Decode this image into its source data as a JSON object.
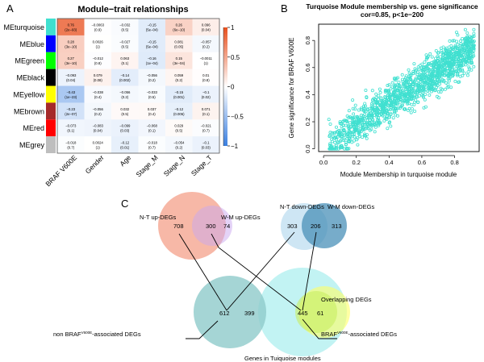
{
  "panels": {
    "A": {
      "letter": "A",
      "title": "Module−trait relationships",
      "rows": [
        "MEturquoise",
        "MEblue",
        "MEgreen",
        "MEblack",
        "MEyellow",
        "MEbrown",
        "MEred",
        "MEgrey"
      ],
      "row_colors": [
        "#40E0D0",
        "#0000FF",
        "#00FF00",
        "#000000",
        "#FFFF00",
        "#A52A2A",
        "#FF0000",
        "#BEBEBE"
      ],
      "columns": [
        "BRAF V600E",
        "Gender",
        "Age",
        "Stage_M",
        "Stage_N",
        "Stage_T"
      ],
      "cells": [
        [
          {
            "r": 0.76,
            "p": "(2e−93)"
          },
          {
            "r": -0.0063,
            "p": "(0.9)"
          },
          {
            "r": -0.032,
            "p": "(0.5)"
          },
          {
            "r": -0.15,
            "p": "(5e−04)"
          },
          {
            "r": 0.26,
            "p": "(6e−10)"
          },
          {
            "r": 0.096,
            "p": "(0.04)"
          }
        ],
        [
          {
            "r": 0.28,
            "p": "(3e−10)"
          },
          {
            "r": 0.0026,
            "p": "(1)"
          },
          {
            "r": -0.027,
            "p": "(0.5)"
          },
          {
            "r": -0.15,
            "p": "(5e−04)"
          },
          {
            "r": 0.081,
            "p": "(0.05)"
          },
          {
            "r": -0.057,
            "p": "(0.2)"
          }
        ],
        [
          {
            "r": 0.27,
            "p": "(3e−10)"
          },
          {
            "r": -0.012,
            "p": "(0.8)"
          },
          {
            "r": 0.063,
            "p": "(0.1)"
          },
          {
            "r": -0.16,
            "p": "(1e−04)"
          },
          {
            "r": 0.15,
            "p": "(3e−04)"
          },
          {
            "r": -0.0011,
            "p": "(1)"
          }
        ],
        [
          {
            "r": -0.093,
            "p": "(0.04)"
          },
          {
            "r": 0.079,
            "p": "(0.08)"
          },
          {
            "r": -0.14,
            "p": "(0.002)"
          },
          {
            "r": -0.056,
            "p": "(0.2)"
          },
          {
            "r": 0.059,
            "p": "(0.2)"
          },
          {
            "r": 0.01,
            "p": "(0.8)"
          }
        ],
        [
          {
            "r": -0.43,
            "p": "(1e−23)"
          },
          {
            "r": -0.038,
            "p": "(0.4)"
          },
          {
            "r": -0.056,
            "p": "(0.2)"
          },
          {
            "r": -0.033,
            "p": "(0.5)"
          },
          {
            "r": -0.15,
            "p": "(0.001)"
          },
          {
            "r": -0.1,
            "p": "(0.02)"
          }
        ],
        [
          {
            "r": -0.23,
            "p": "(2e−07)"
          },
          {
            "r": -0.056,
            "p": "(0.2)"
          },
          {
            "r": 0.032,
            "p": "(0.5)"
          },
          {
            "r": 0.037,
            "p": "(0.4)"
          },
          {
            "r": -0.12,
            "p": "(0.006)"
          },
          {
            "r": 0.071,
            "p": "(0.1)"
          }
        ],
        [
          {
            "r": -0.073,
            "p": "(0.1)"
          },
          {
            "r": -0.083,
            "p": "(0.04)"
          },
          {
            "r": -0.099,
            "p": "(0.03)"
          },
          {
            "r": -0.068,
            "p": "(0.1)"
          },
          {
            "r": 0.029,
            "p": "(0.5)"
          },
          {
            "r": -0.021,
            "p": "(0.7)"
          }
        ],
        [
          {
            "r": -0.018,
            "p": "(0.7)"
          },
          {
            "r": 0.0024,
            "p": "(1)"
          },
          {
            "r": -0.12,
            "p": "(0.01)"
          },
          {
            "r": -0.018,
            "p": "(0.7)"
          },
          {
            "r": -0.054,
            "p": "(0.2)"
          },
          {
            "r": -0.1,
            "p": "(0.03)"
          }
        ]
      ],
      "colorbar": {
        "ticks": [
          "1",
          "0.5",
          "0",
          "−0.5",
          "−1"
        ],
        "range": [
          -1,
          1
        ],
        "high_color": "#E8501E",
        "mid_color": "#FFFFFF",
        "low_color": "#3A7FE0"
      }
    },
    "B": {
      "letter": "B",
      "title_line1": "Turquoise Module membership vs. gene significance",
      "title_line2": "cor=0.85, p<1e−200",
      "xlabel": "Module Membership in turquoise module",
      "ylabel": "Gene significance for BRAF V600E",
      "x_ticks": [
        "0.0",
        "0.2",
        "0.4",
        "0.6",
        "0.8"
      ],
      "y_ticks": [
        "0.0",
        "0.2",
        "0.4",
        "0.6",
        "0.8"
      ],
      "point_color": "#40E0D0"
    },
    "C": {
      "letter": "C",
      "up": {
        "left_label": "N-T  up-DEGs",
        "right_label": "W-M  up-DEGs",
        "left_only": "708",
        "overlap": "300",
        "right_only": "74"
      },
      "down": {
        "left_label": "N-T  down-DEGs",
        "right_label": "W-M  down-DEGs",
        "left_only": "303",
        "overlap": "206",
        "right_only": "313"
      },
      "bottom": {
        "left_only": "612",
        "overlap_left": "399",
        "overlap_right": "445",
        "right_only": "61",
        "non_braf_label_pre": "non BRAF",
        "non_braf_sup": "V600E",
        "non_braf_label_post": "-associated DEGs",
        "braf_label_pre": "BRAF",
        "braf_sup": "V600E",
        "braf_label_post": "-associated DEGs",
        "overlapping_label": "Overlapping DEGs",
        "turquoise_label": "Genes in Tuiquoise modules"
      }
    }
  },
  "chart_data": [
    {
      "type": "heatmap",
      "title": "Module−trait relationships",
      "rows": [
        "MEturquoise",
        "MEblue",
        "MEgreen",
        "MEblack",
        "MEyellow",
        "MEbrown",
        "MEred",
        "MEgrey"
      ],
      "columns": [
        "BRAF V600E",
        "Gender",
        "Age",
        "Stage_M",
        "Stage_N",
        "Stage_T"
      ],
      "values": [
        [
          0.76,
          -0.0063,
          -0.032,
          -0.15,
          0.26,
          0.096
        ],
        [
          0.28,
          0.0026,
          -0.027,
          -0.15,
          0.081,
          -0.057
        ],
        [
          0.27,
          -0.012,
          0.063,
          -0.16,
          0.15,
          -0.0011
        ],
        [
          -0.093,
          0.079,
          -0.14,
          -0.056,
          0.059,
          0.01
        ],
        [
          -0.43,
          -0.038,
          -0.056,
          -0.033,
          -0.15,
          -0.1
        ],
        [
          -0.23,
          -0.056,
          0.032,
          0.037,
          -0.12,
          0.071
        ],
        [
          -0.073,
          -0.083,
          -0.099,
          -0.068,
          0.029,
          -0.021
        ],
        [
          -0.018,
          0.0024,
          -0.12,
          -0.018,
          -0.054,
          -0.1
        ]
      ],
      "pvalues": [
        [
          "2e-93",
          "0.9",
          "0.5",
          "5e-04",
          "6e-10",
          "0.04"
        ],
        [
          "3e-10",
          "1",
          "0.5",
          "5e-04",
          "0.05",
          "0.2"
        ],
        [
          "3e-10",
          "0.8",
          "0.1",
          "1e-04",
          "3e-04",
          "1"
        ],
        [
          "0.04",
          "0.08",
          "0.002",
          "0.2",
          "0.2",
          "0.8"
        ],
        [
          "1e-23",
          "0.4",
          "0.2",
          "0.5",
          "0.001",
          "0.02"
        ],
        [
          "2e-07",
          "0.2",
          "0.5",
          "0.4",
          "0.006",
          "0.1"
        ],
        [
          "0.1",
          "0.04",
          "0.03",
          "0.1",
          "0.5",
          "0.7"
        ],
        [
          "0.7",
          "1",
          "0.01",
          "0.7",
          "0.2",
          "0.03"
        ]
      ],
      "legend": "colorbar right, range -1 to 1",
      "colorbar_ticks": [
        1,
        0.5,
        0,
        -0.5,
        -1
      ]
    },
    {
      "type": "scatter",
      "title": "Turquoise Module membership vs. gene significance",
      "subtitle": "cor=0.85, p<1e-200",
      "xlabel": "Module Membership in turquoise module",
      "ylabel": "Gene significance for BRAF V600E",
      "xlim": [
        -0.03,
        0.95
      ],
      "ylim": [
        -0.02,
        0.92
      ],
      "x_ticks": [
        0.0,
        0.2,
        0.4,
        0.6,
        0.8
      ],
      "y_ticks": [
        0.0,
        0.2,
        0.4,
        0.6,
        0.8
      ],
      "correlation": 0.85,
      "trend": {
        "slope": 0.82,
        "intercept": -0.05,
        "noise_sd": 0.07,
        "x_range": [
          0.03,
          0.92
        ]
      },
      "n_points_approx": 1400,
      "grid": false
    }
  ]
}
